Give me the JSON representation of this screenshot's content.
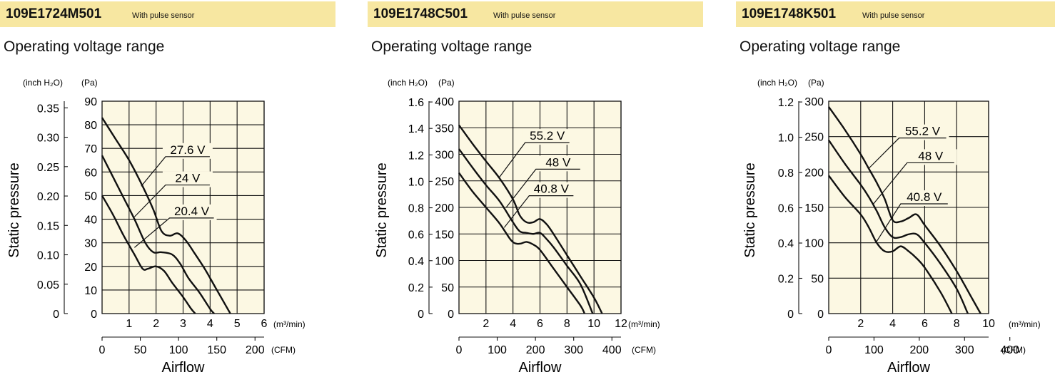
{
  "chart_data": [
    {
      "type": "line",
      "model": "109E1724M501",
      "subtitle": "With pulse sensor",
      "heading": "Operating voltage range",
      "xlabel": "Airflow",
      "ylabel": "Static pressure",
      "x_unit_primary": "(m³/min)",
      "x_unit_secondary": "(CFM)",
      "y_unit_primary": "(Pa)",
      "y_unit_secondary": "(inch H₂O)",
      "xlim": [
        0,
        6
      ],
      "ylim": [
        0,
        90
      ],
      "x_ticks": [
        1,
        2,
        3,
        4,
        5,
        6
      ],
      "x_tick_labels": [
        "1",
        "2",
        "3",
        "4",
        "5",
        "6"
      ],
      "y_ticks": [
        0,
        10,
        20,
        30,
        40,
        50,
        60,
        70,
        80,
        90
      ],
      "y_tick_labels": [
        "0",
        "10",
        "20",
        "30",
        "40",
        "50",
        "60",
        "70",
        "80",
        "90"
      ],
      "sec_x_ticks": [
        0,
        50,
        100,
        150,
        200
      ],
      "sec_x_tick_labels": [
        "0",
        "50",
        "100",
        "150",
        "200"
      ],
      "sec_y_ticks": [
        0,
        0.05,
        0.1,
        0.15,
        0.2,
        0.25,
        0.3,
        0.35
      ],
      "sec_y_tick_labels": [
        "0",
        "0.05",
        "0.10",
        "0.15",
        "0.20",
        "0.25",
        "0.30",
        "0.35"
      ],
      "grid": true,
      "series": [
        {
          "name": "27.6 V",
          "x": [
            0,
            0.5,
            1.0,
            1.5,
            1.9,
            2.2,
            2.5,
            2.8,
            3.1,
            3.4,
            3.8,
            4.2,
            4.6,
            4.75
          ],
          "y": [
            83,
            74,
            65,
            54,
            44,
            35,
            33,
            34,
            31,
            26,
            19,
            11,
            3,
            0
          ],
          "label_at": [
            1.45,
            54
          ],
          "label_pos": [
            2.35,
            66.5
          ]
        },
        {
          "name": "24 V",
          "x": [
            0,
            0.4,
            0.8,
            1.2,
            1.6,
            1.9,
            2.2,
            2.6,
            2.9,
            3.2,
            3.6,
            4.0,
            4.15
          ],
          "y": [
            67,
            58,
            49,
            40,
            30,
            26,
            26,
            25,
            21,
            15,
            9,
            2,
            0
          ],
          "label_at": [
            1.2,
            41
          ],
          "label_pos": [
            2.35,
            54.5
          ]
        },
        {
          "name": "20.4 V",
          "x": [
            0,
            0.4,
            0.8,
            1.2,
            1.5,
            1.7,
            2.0,
            2.3,
            2.6,
            3.0,
            3.3,
            3.45
          ],
          "y": [
            50,
            42,
            33,
            25,
            19,
            19,
            20,
            18,
            13,
            7,
            2,
            0
          ],
          "label_at": [
            1.2,
            28
          ],
          "label_pos": [
            2.5,
            40.5
          ]
        }
      ]
    },
    {
      "type": "line",
      "model": "109E1748C501",
      "subtitle": "With pulse sensor",
      "heading": "Operating voltage range",
      "xlabel": "Airflow",
      "ylabel": "Static pressure",
      "x_unit_primary": "(m³/min)",
      "x_unit_secondary": "(CFM)",
      "y_unit_primary": "(Pa)",
      "y_unit_secondary": "(inch H₂O)",
      "xlim": [
        0,
        12
      ],
      "ylim": [
        0,
        400
      ],
      "x_ticks": [
        2,
        4,
        6,
        8,
        10,
        12
      ],
      "x_tick_labels": [
        "2",
        "4",
        "6",
        "8",
        "10",
        "12"
      ],
      "y_ticks": [
        0,
        50,
        100,
        150,
        200,
        250,
        300,
        350,
        400
      ],
      "y_tick_labels": [
        "0",
        "50",
        "100",
        "150",
        "200",
        "250",
        "300",
        "350",
        "400"
      ],
      "sec_x_ticks": [
        0,
        100,
        200,
        300,
        400
      ],
      "sec_x_tick_labels": [
        "0",
        "100",
        "200",
        "300",
        "400"
      ],
      "sec_y_ticks": [
        0,
        0.2,
        0.4,
        0.6,
        0.8,
        1.0,
        1.2,
        1.4,
        1.6
      ],
      "sec_y_tick_labels": [
        "0",
        "0.2",
        "0.4",
        "0.6",
        "0.8",
        "1.0",
        "1.2",
        "1.4",
        "1.6"
      ],
      "grid": true,
      "series": [
        {
          "name": "55.2 V",
          "x": [
            0,
            1,
            2,
            3,
            4,
            4.5,
            5,
            5.5,
            6,
            6.5,
            7,
            8,
            9,
            10,
            10.6
          ],
          "y": [
            355,
            320,
            287,
            255,
            215,
            185,
            172,
            172,
            178,
            168,
            150,
            110,
            70,
            30,
            0
          ],
          "label_at": [
            3,
            257
          ],
          "label_pos": [
            4.9,
            322
          ]
        },
        {
          "name": "48 V",
          "x": [
            0,
            1,
            2,
            3,
            4,
            4.5,
            5,
            5.5,
            6,
            6.5,
            7,
            8,
            9,
            9.9
          ],
          "y": [
            310,
            275,
            242,
            212,
            172,
            155,
            152,
            150,
            152,
            140,
            125,
            90,
            55,
            0
          ],
          "label_at": [
            3.5,
            200
          ],
          "label_pos": [
            5.7,
            272
          ]
        },
        {
          "name": "40.8 V",
          "x": [
            0,
            1,
            2,
            3,
            3.8,
            4.2,
            4.6,
            5,
            5.5,
            6,
            7,
            8,
            9,
            9.3
          ],
          "y": [
            265,
            230,
            200,
            170,
            140,
            132,
            132,
            135,
            130,
            120,
            85,
            50,
            15,
            0
          ],
          "label_at": [
            3.35,
            162
          ],
          "label_pos": [
            5.2,
            222
          ]
        }
      ]
    },
    {
      "type": "line",
      "model": "109E1748K501",
      "subtitle": "With pulse sensor",
      "heading": "Operating voltage range",
      "xlabel": "Airflow",
      "ylabel": "Static pressure",
      "x_unit_primary": "(m³/min)",
      "x_unit_secondary": "(CFM)",
      "y_unit_primary": "(Pa)",
      "y_unit_secondary": "(inch H₂O)",
      "xlim": [
        0,
        10
      ],
      "ylim": [
        0,
        300
      ],
      "x_ticks": [
        2,
        4,
        6,
        8,
        10
      ],
      "x_tick_labels": [
        "2",
        "4",
        "6",
        "8",
        "10"
      ],
      "y_ticks": [
        0,
        50,
        100,
        150,
        200,
        250,
        300
      ],
      "y_tick_labels": [
        "0",
        "50",
        "100",
        "150",
        "200",
        "250",
        "300"
      ],
      "sec_x_ticks": [
        0,
        100,
        200,
        300,
        400
      ],
      "sec_x_tick_labels": [
        "0",
        "100",
        "200",
        "300",
        "400"
      ],
      "sec_y_ticks": [
        0,
        0.2,
        0.4,
        0.6,
        0.8,
        1.0,
        1.2
      ],
      "sec_y_tick_labels": [
        "0",
        "0.2",
        "0.4",
        "0.6",
        "0.8",
        "1.0",
        "1.2"
      ],
      "grid": true,
      "series": [
        {
          "name": "55.2 V",
          "x": [
            0,
            1,
            2,
            2.5,
            3,
            3.5,
            4,
            4.5,
            5,
            5.5,
            6,
            7,
            8,
            9,
            9.5
          ],
          "y": [
            292,
            260,
            225,
            205,
            185,
            162,
            132,
            130,
            135,
            140,
            125,
            95,
            60,
            20,
            0
          ],
          "label_at": [
            2.5,
            205
          ],
          "label_pos": [
            4.4,
            248
          ]
        },
        {
          "name": "48 V",
          "x": [
            0,
            1,
            2,
            2.5,
            3,
            3.5,
            4,
            4.5,
            5,
            5.5,
            6,
            7,
            8,
            8.7
          ],
          "y": [
            245,
            212,
            182,
            165,
            145,
            122,
            108,
            108,
            112,
            112,
            100,
            70,
            35,
            0
          ],
          "label_at": [
            2.8,
            155
          ],
          "label_pos": [
            4.9,
            213
          ]
        },
        {
          "name": "40.8 V",
          "x": [
            0,
            1,
            2,
            2.5,
            3,
            3.5,
            4,
            4.5,
            5,
            5.5,
            6,
            7,
            7.7
          ],
          "y": [
            195,
            165,
            140,
            122,
            100,
            88,
            88,
            95,
            88,
            78,
            65,
            30,
            0
          ],
          "label_at": [
            3.0,
            102
          ],
          "label_pos": [
            4.5,
            155
          ]
        }
      ]
    }
  ]
}
